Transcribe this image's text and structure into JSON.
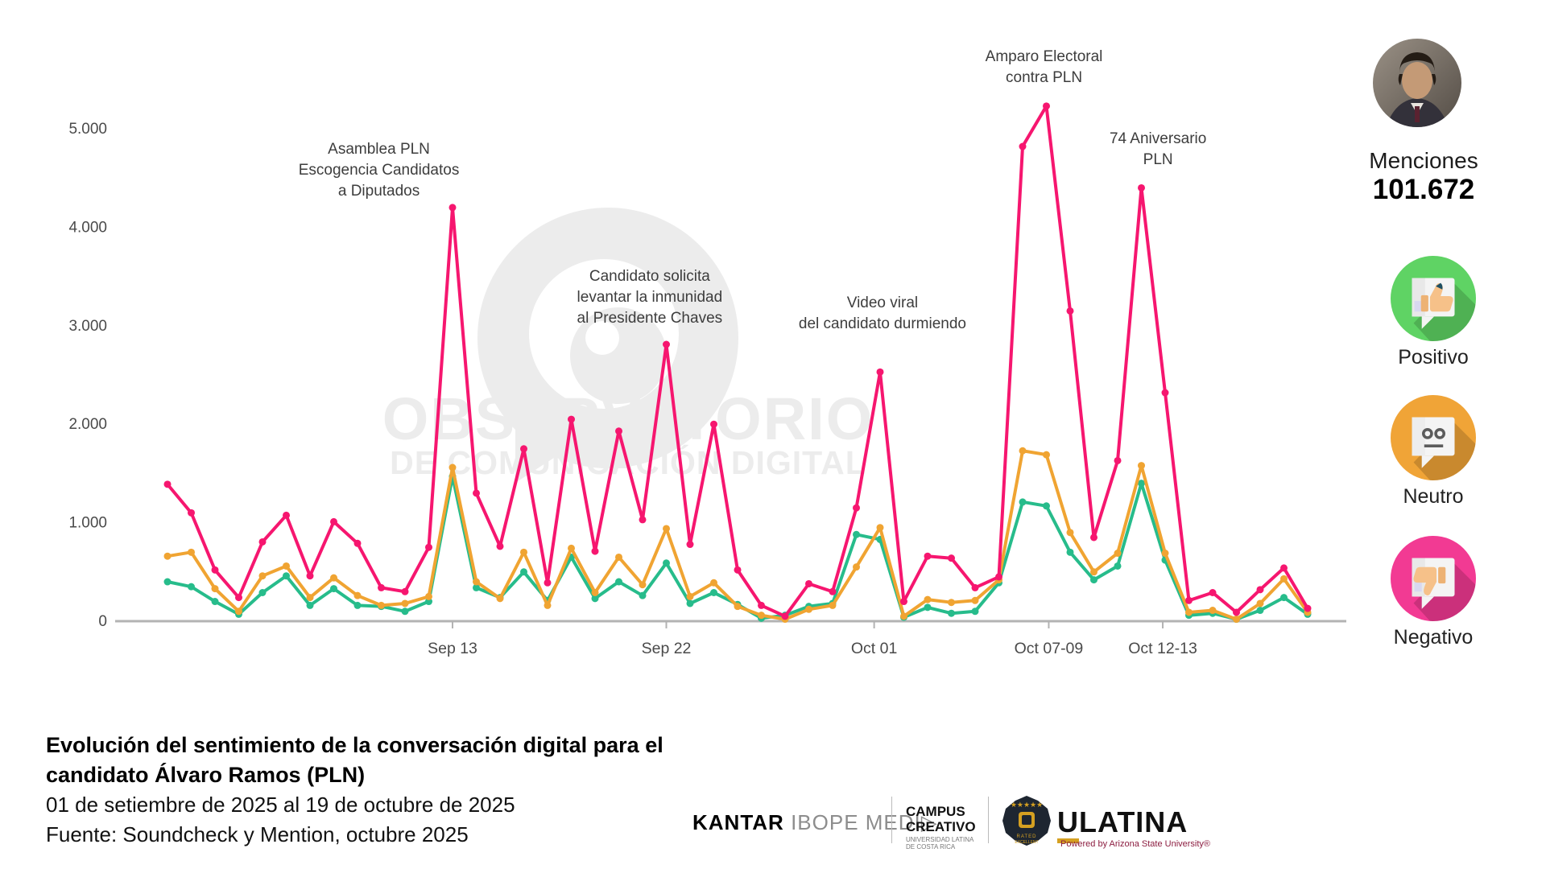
{
  "watermark": {
    "line1": "OBSERVATORIO",
    "line2": "DE COMUNICACIÓN DIGITAL"
  },
  "chart_data": {
    "type": "line",
    "title": "Evolución del sentimiento de la conversación digital para el candidato Álvaro Ramos (PLN)",
    "x": [
      "Sep 01",
      "Sep 02",
      "Sep 03",
      "Sep 04",
      "Sep 05",
      "Sep 06",
      "Sep 07",
      "Sep 08",
      "Sep 09",
      "Sep 10",
      "Sep 11",
      "Sep 12",
      "Sep 13",
      "Sep 14",
      "Sep 15",
      "Sep 16",
      "Sep 17",
      "Sep 18",
      "Sep 19",
      "Sep 20",
      "Sep 21",
      "Sep 22",
      "Sep 23",
      "Sep 24",
      "Sep 25",
      "Sep 26",
      "Sep 27",
      "Sep 28",
      "Sep 29",
      "Sep 30",
      "Oct 01",
      "Oct 02",
      "Oct 03",
      "Oct 04",
      "Oct 05",
      "Oct 06",
      "Oct 07",
      "Oct 08",
      "Oct 09",
      "Oct 10",
      "Oct 11",
      "Oct 12",
      "Oct 13",
      "Oct 14",
      "Oct 15",
      "Oct 16",
      "Oct 17",
      "Oct 18",
      "Oct 19"
    ],
    "series": [
      {
        "name": "Negativo",
        "color": "#f6166f",
        "values": [
          1390,
          1100,
          520,
          240,
          805,
          1075,
          460,
          1010,
          790,
          340,
          300,
          750,
          4200,
          1300,
          760,
          1750,
          390,
          2050,
          710,
          1930,
          1030,
          2810,
          780,
          2000,
          520,
          160,
          50,
          380,
          300,
          1150,
          2530,
          200,
          660,
          640,
          340,
          450,
          4820,
          5230,
          3150,
          850,
          1630,
          4400,
          2320,
          210,
          290,
          90,
          320,
          540,
          130
        ]
      },
      {
        "name": "Neutro",
        "color": "#f0a432",
        "values": [
          660,
          700,
          330,
          100,
          460,
          560,
          240,
          440,
          260,
          160,
          180,
          250,
          1560,
          400,
          230,
          700,
          160,
          740,
          290,
          650,
          370,
          940,
          250,
          390,
          150,
          60,
          20,
          120,
          160,
          550,
          950,
          50,
          220,
          190,
          210,
          420,
          1730,
          1690,
          900,
          500,
          690,
          1580,
          690,
          90,
          110,
          20,
          180,
          430,
          90
        ]
      },
      {
        "name": "Positivo",
        "color": "#27bc8b",
        "values": [
          400,
          350,
          200,
          70,
          290,
          460,
          160,
          330,
          160,
          150,
          100,
          200,
          1470,
          340,
          240,
          500,
          210,
          650,
          230,
          400,
          260,
          590,
          180,
          290,
          170,
          30,
          60,
          150,
          180,
          880,
          830,
          40,
          140,
          80,
          100,
          390,
          1210,
          1170,
          700,
          420,
          560,
          1400,
          620,
          60,
          80,
          20,
          110,
          240,
          70
        ]
      }
    ],
    "ylim": [
      0,
      5500
    ],
    "grid": false,
    "legend_position": "right",
    "yticks": [
      {
        "label": "0",
        "value": 0
      },
      {
        "label": "1.000",
        "value": 1000
      },
      {
        "label": "2.000",
        "value": 2000
      },
      {
        "label": "3.000",
        "value": 3000
      },
      {
        "label": "4.000",
        "value": 4000
      },
      {
        "label": "5.000",
        "value": 5000
      }
    ],
    "xticks": [
      {
        "label": "Sep 13",
        "day": 12
      },
      {
        "label": "Sep 22",
        "day": 21
      },
      {
        "label": "Oct 01",
        "day": 29.75
      },
      {
        "label": "Oct 07-09",
        "day": 37.1
      },
      {
        "label": "Oct 12-13",
        "day": 41.9
      }
    ],
    "annotations": [
      {
        "lines": [
          "Asamblea PLN",
          "Escogencia Candidatos",
          "a Diputados"
        ],
        "anchor_day": 8.9,
        "top": 173
      },
      {
        "lines": [
          "Candidato solicita",
          "levantar la inmunidad",
          "al Presidente Chaves"
        ],
        "anchor_day": 20.3,
        "top": 331
      },
      {
        "lines": [
          "Video viral",
          "del candidato durmiendo"
        ],
        "anchor_day": 30.1,
        "top": 364
      },
      {
        "lines": [
          "Amparo Electoral",
          "contra PLN"
        ],
        "anchor_day": 36.9,
        "top": 58
      },
      {
        "lines": [
          "74 Aniversario",
          "PLN"
        ],
        "anchor_day": 41.7,
        "top": 160
      }
    ]
  },
  "summary": {
    "mentions_label": "Menciones",
    "mentions_value": "101.672"
  },
  "legend": [
    {
      "label": "Positivo",
      "color": "#5fd364",
      "shade": "#3fc24b"
    },
    {
      "label": "Neutro",
      "color": "#f0a437",
      "shade": "#d88a1f"
    },
    {
      "label": "Negativo",
      "color": "#f23a93",
      "shade": "#bc1a6b"
    }
  ],
  "footer": {
    "title_line1": "Evolución del sentimiento de la conversación digital para el",
    "title_line2": "candidato Álvaro Ramos (PLN)",
    "date_range": "01 de setiembre de 2025 al 19 de octubre de 2025",
    "source": "Fuente: Soundcheck y Mention, octubre 2025"
  },
  "logos": {
    "kantar_bold": "KANTAR",
    "kantar_light": "IBOPE MEDI▷",
    "campus_line1": "CAMPUS",
    "campus_line2": "CREATIVO",
    "campus_sub1": "UNIVERSIDAD LATINA",
    "campus_sub2": "DE COSTA RICA",
    "ulatina_u": "U",
    "ulatina_rest": "LATINA",
    "asu_sub": "Powered by Arizona State University®"
  }
}
